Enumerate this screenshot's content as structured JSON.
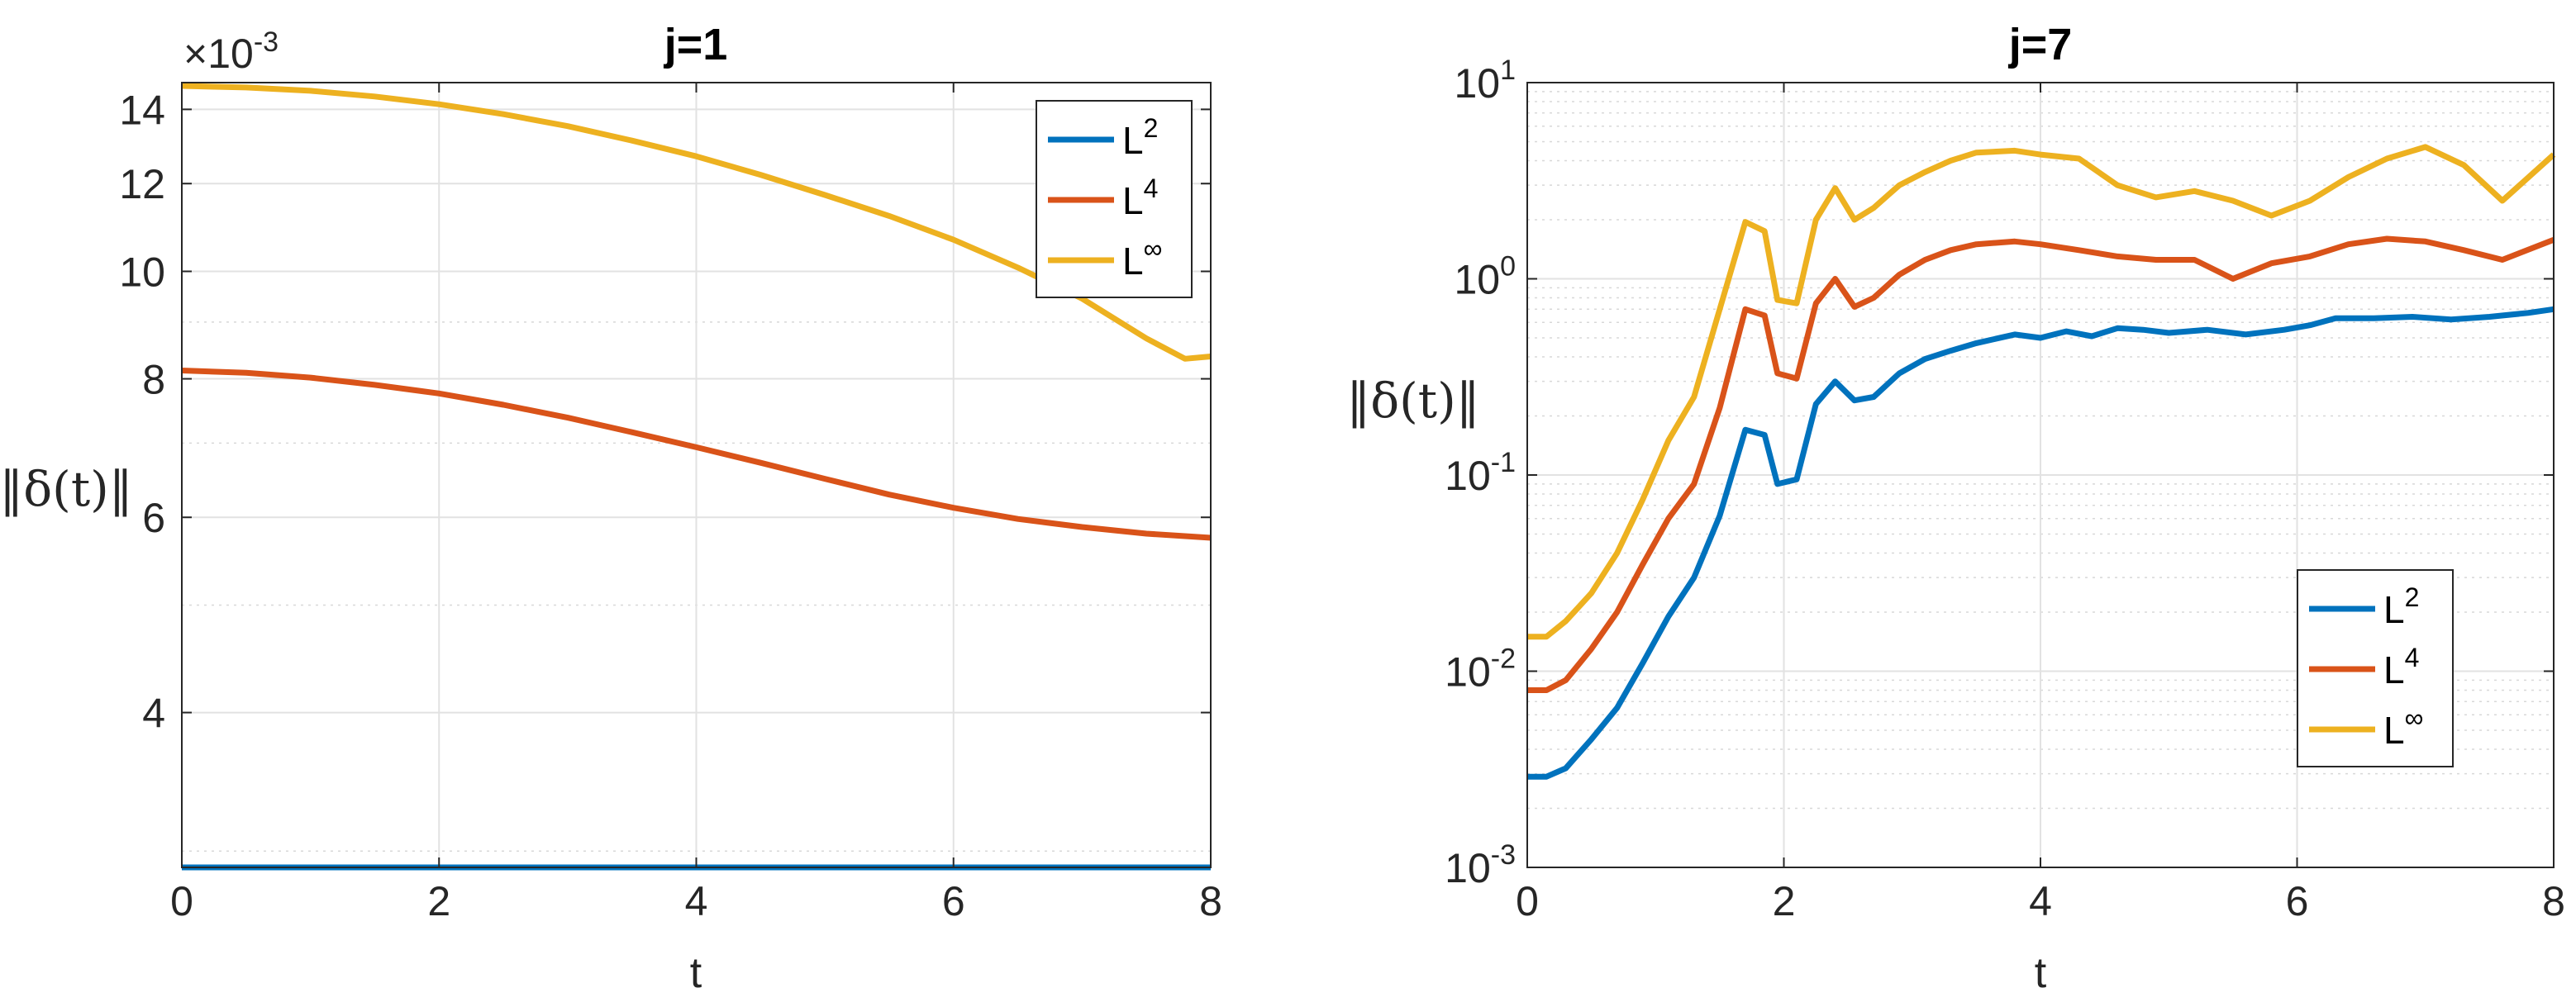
{
  "chart_data": [
    {
      "type": "line",
      "title": "j=1",
      "xlabel": "t",
      "ylabel": "‖δ(t)‖",
      "xlim": [
        0,
        8
      ],
      "ylim": [
        0.0029,
        0.0148
      ],
      "yscale": "log",
      "exponent_label": "×10",
      "exponent_power": "-3",
      "x_ticks": [
        0,
        2,
        4,
        6,
        8
      ],
      "x_tick_labels": [
        "0",
        "2",
        "4",
        "6",
        "8"
      ],
      "y_ticks": [
        0.004,
        0.006,
        0.008,
        0.01,
        0.012,
        0.014
      ],
      "y_tick_labels": [
        "4",
        "6",
        "8",
        "10",
        "12",
        "14"
      ],
      "legend_position": "top-right",
      "series": [
        {
          "name": "L",
          "sup": "2",
          "color": "#0072BD",
          "x": [
            0,
            1,
            2,
            3,
            4,
            5,
            6,
            7,
            8
          ],
          "values": [
            0.0029,
            0.0029,
            0.0029,
            0.0029,
            0.0029,
            0.0029,
            0.0029,
            0.0029,
            0.0029
          ]
        },
        {
          "name": "L",
          "sup": "4",
          "color": "#D95319",
          "x": [
            0,
            0.5,
            1,
            1.5,
            2,
            2.5,
            3,
            3.5,
            4,
            4.5,
            5,
            5.5,
            6,
            6.5,
            7,
            7.5,
            8
          ],
          "values": [
            0.00814,
            0.0081,
            0.00802,
            0.0079,
            0.00776,
            0.00758,
            0.00738,
            0.00716,
            0.00694,
            0.00672,
            0.0065,
            0.00629,
            0.00612,
            0.00598,
            0.00588,
            0.0058,
            0.00575
          ]
        },
        {
          "name": "L",
          "sup": "∞",
          "color": "#EDB120",
          "x": [
            0,
            0.5,
            1,
            1.5,
            2,
            2.5,
            3,
            3.5,
            4,
            4.5,
            5,
            5.5,
            6,
            6.5,
            7,
            7.5,
            7.8,
            8
          ],
          "values": [
            0.0147,
            0.01465,
            0.01455,
            0.01438,
            0.01415,
            0.01386,
            0.01352,
            0.01312,
            0.0127,
            0.01222,
            0.01172,
            0.01122,
            0.01068,
            0.01008,
            0.00945,
            0.0087,
            0.00834,
            0.00838
          ]
        }
      ]
    },
    {
      "type": "line",
      "title": "j=7",
      "xlabel": "t",
      "ylabel": "‖δ(t)‖",
      "xlim": [
        0,
        8
      ],
      "ylim": [
        0.001,
        10
      ],
      "yscale": "log",
      "x_ticks": [
        0,
        2,
        4,
        6,
        8
      ],
      "x_tick_labels": [
        "0",
        "2",
        "4",
        "6",
        "8"
      ],
      "y_ticks": [
        0.001,
        0.01,
        0.1,
        1,
        10
      ],
      "y_tick_base": [
        "10",
        "10",
        "10",
        "10",
        "10"
      ],
      "y_tick_exp": [
        "-3",
        "-2",
        "-1",
        "0",
        "1"
      ],
      "legend_position": "bottom-right",
      "series": [
        {
          "name": "L",
          "sup": "2",
          "color": "#0072BD",
          "x": [
            0,
            0.15,
            0.3,
            0.5,
            0.7,
            0.9,
            1.1,
            1.3,
            1.5,
            1.7,
            1.85,
            1.95,
            2.1,
            2.25,
            2.4,
            2.55,
            2.7,
            2.9,
            3.1,
            3.3,
            3.5,
            3.8,
            4.0,
            4.2,
            4.4,
            4.6,
            4.8,
            5.0,
            5.3,
            5.6,
            5.9,
            6.1,
            6.3,
            6.6,
            6.9,
            7.2,
            7.5,
            7.8,
            8.0
          ],
          "values": [
            0.0029,
            0.0029,
            0.0032,
            0.0045,
            0.0065,
            0.011,
            0.019,
            0.03,
            0.062,
            0.17,
            0.16,
            0.09,
            0.095,
            0.23,
            0.3,
            0.24,
            0.25,
            0.33,
            0.39,
            0.43,
            0.47,
            0.52,
            0.5,
            0.54,
            0.51,
            0.56,
            0.55,
            0.53,
            0.55,
            0.52,
            0.55,
            0.58,
            0.63,
            0.63,
            0.64,
            0.62,
            0.64,
            0.67,
            0.7
          ]
        },
        {
          "name": "L",
          "sup": "4",
          "color": "#D95319",
          "x": [
            0,
            0.15,
            0.3,
            0.5,
            0.7,
            0.9,
            1.1,
            1.3,
            1.5,
            1.7,
            1.85,
            1.95,
            2.1,
            2.25,
            2.4,
            2.55,
            2.7,
            2.9,
            3.1,
            3.3,
            3.5,
            3.8,
            4.0,
            4.3,
            4.6,
            4.9,
            5.2,
            5.5,
            5.8,
            6.1,
            6.4,
            6.7,
            7.0,
            7.3,
            7.6,
            8.0
          ],
          "values": [
            0.008,
            0.008,
            0.009,
            0.013,
            0.02,
            0.035,
            0.06,
            0.09,
            0.22,
            0.7,
            0.65,
            0.33,
            0.31,
            0.75,
            1.0,
            0.72,
            0.8,
            1.05,
            1.25,
            1.4,
            1.5,
            1.55,
            1.5,
            1.4,
            1.3,
            1.25,
            1.25,
            1.0,
            1.2,
            1.3,
            1.5,
            1.6,
            1.55,
            1.4,
            1.25,
            1.58
          ]
        },
        {
          "name": "L",
          "sup": "∞",
          "color": "#EDB120",
          "x": [
            0,
            0.15,
            0.3,
            0.5,
            0.7,
            0.9,
            1.1,
            1.3,
            1.5,
            1.7,
            1.85,
            1.95,
            2.1,
            2.25,
            2.4,
            2.55,
            2.7,
            2.9,
            3.1,
            3.3,
            3.5,
            3.8,
            4.0,
            4.3,
            4.6,
            4.9,
            5.2,
            5.5,
            5.8,
            6.1,
            6.4,
            6.7,
            7.0,
            7.3,
            7.6,
            8.0
          ],
          "values": [
            0.015,
            0.015,
            0.018,
            0.025,
            0.04,
            0.075,
            0.15,
            0.25,
            0.7,
            1.95,
            1.75,
            0.78,
            0.75,
            2.0,
            2.9,
            2.0,
            2.3,
            3.0,
            3.5,
            4.0,
            4.4,
            4.5,
            4.3,
            4.1,
            3.0,
            2.6,
            2.8,
            2.5,
            2.1,
            2.5,
            3.3,
            4.1,
            4.7,
            3.8,
            2.5,
            4.3
          ]
        }
      ]
    }
  ]
}
